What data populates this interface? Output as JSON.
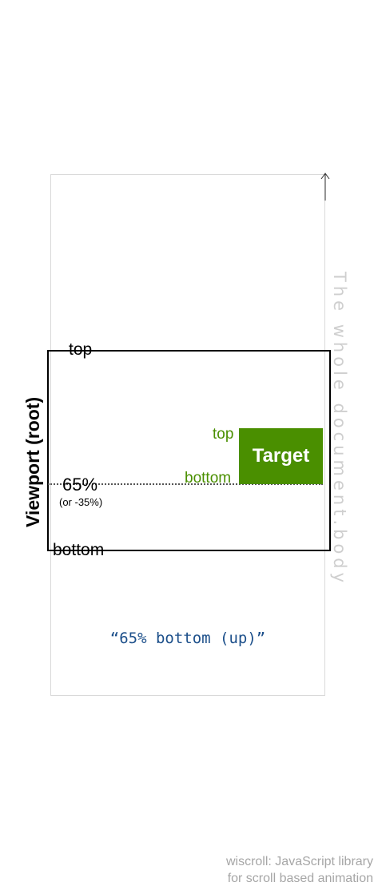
{
  "document": {
    "label": "The whole document.body",
    "border_color": "#d9d9d9",
    "label_color": "#cfcfcf"
  },
  "viewport": {
    "label": "Viewport (root)",
    "top_label": "top",
    "bottom_label": "bottom",
    "percent_label": "65%",
    "percent_alt_label": "(or -35%)"
  },
  "target": {
    "label": "Target",
    "top_label": "top",
    "bottom_label": "bottom",
    "color": "#4a8f00"
  },
  "caption": "“65% bottom (up)”",
  "footer": {
    "line1": "wiscroll: JavaScript library",
    "line2": "for scroll based animation"
  },
  "icons": {
    "scroll_direction": "arrow-up-icon"
  }
}
